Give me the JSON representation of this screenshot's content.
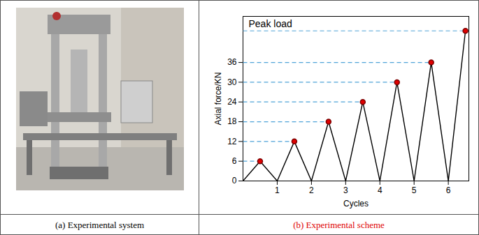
{
  "chart_data": {
    "type": "line",
    "title": "(b) Experimental scheme",
    "x_label": "Cycles",
    "y_label": "Axial force/KN",
    "x": [
      0,
      0.5,
      1,
      1.5,
      2,
      2.5,
      3,
      3.5,
      4,
      4.5,
      5,
      5.5,
      6,
      6.5
    ],
    "values": [
      0,
      6,
      0,
      12,
      0,
      18,
      0,
      24,
      0,
      30,
      0,
      36,
      0,
      45.6
    ],
    "color": "#000000",
    "marker": "circle",
    "annotations": [
      "Peak load"
    ],
    "xlim": [
      0,
      6.6
    ],
    "xticks": [
      1,
      2,
      3,
      4,
      5,
      6
    ],
    "ylim": [
      0,
      50
    ],
    "yticks": [
      0,
      6,
      12,
      18,
      24,
      30,
      36
    ],
    "grid": false
  },
  "photo": {
    "caption": "(a) Experimental system"
  }
}
